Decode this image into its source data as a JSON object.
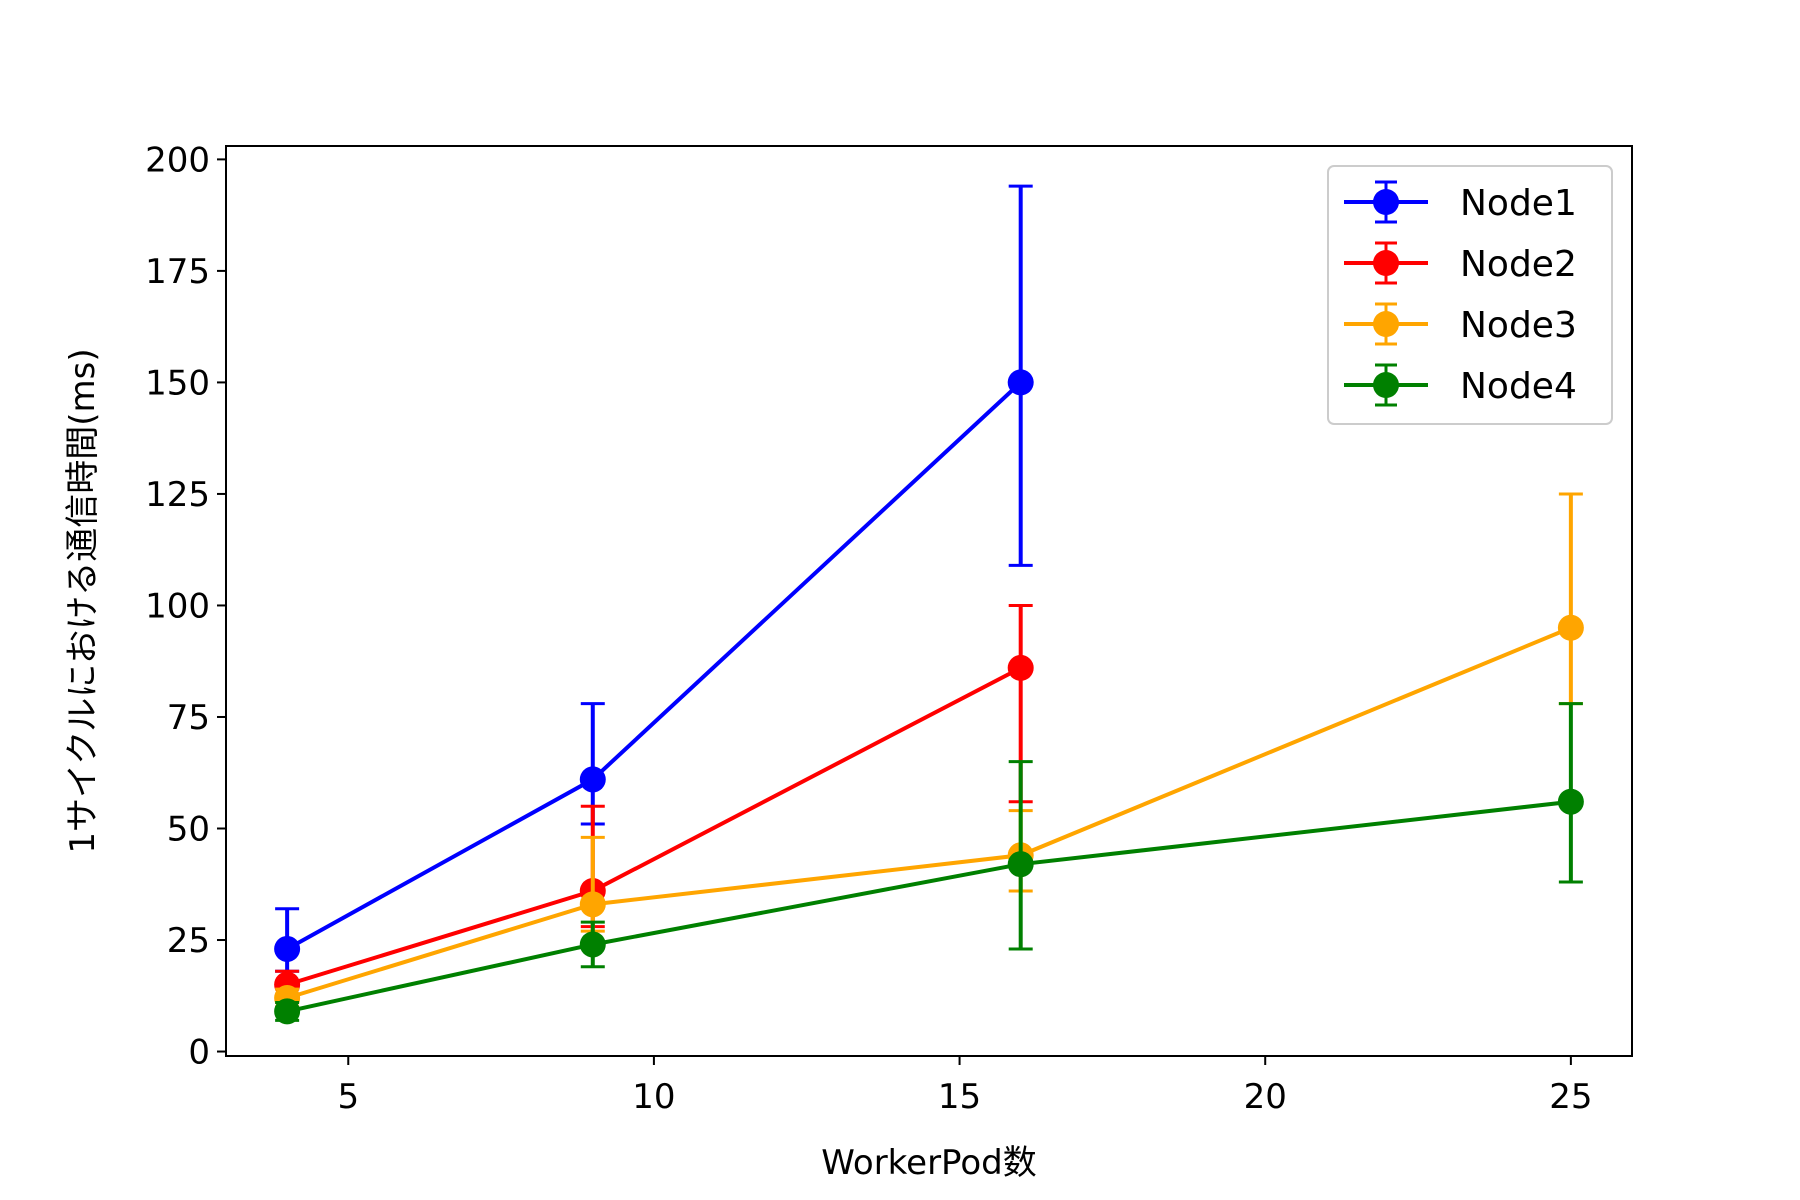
{
  "chart_data": {
    "type": "line",
    "title": "",
    "xlabel": "WorkerPod数",
    "ylabel": "1サイクルにおける通信時間(ms)",
    "xlim": [
      3,
      26
    ],
    "ylim": [
      -1,
      203
    ],
    "xticks": [
      5,
      10,
      15,
      20,
      25
    ],
    "yticks": [
      0,
      25,
      50,
      75,
      100,
      125,
      150,
      175,
      200
    ],
    "grid": false,
    "legend_position": "top-right",
    "series": [
      {
        "name": "Node1",
        "color": "#0000ff",
        "x": [
          4,
          9,
          16
        ],
        "y": [
          23,
          61,
          150
        ],
        "err_low": [
          18,
          51,
          109
        ],
        "err_high": [
          32,
          78,
          194
        ]
      },
      {
        "name": "Node2",
        "color": "#ff0000",
        "x": [
          4,
          9,
          16
        ],
        "y": [
          15,
          36,
          86
        ],
        "err_low": [
          12,
          28,
          56
        ],
        "err_high": [
          18,
          55,
          100
        ]
      },
      {
        "name": "Node3",
        "color": "#ffa500",
        "x": [
          4,
          9,
          16,
          25
        ],
        "y": [
          12,
          33,
          44,
          95
        ],
        "err_low": [
          10,
          27,
          36,
          78
        ],
        "err_high": [
          14,
          48,
          54,
          125
        ]
      },
      {
        "name": "Node4",
        "color": "#008000",
        "x": [
          4,
          9,
          16,
          25
        ],
        "y": [
          9,
          24,
          42,
          56
        ],
        "err_low": [
          7,
          19,
          23,
          38
        ],
        "err_high": [
          11,
          29,
          65,
          78
        ]
      }
    ]
  }
}
